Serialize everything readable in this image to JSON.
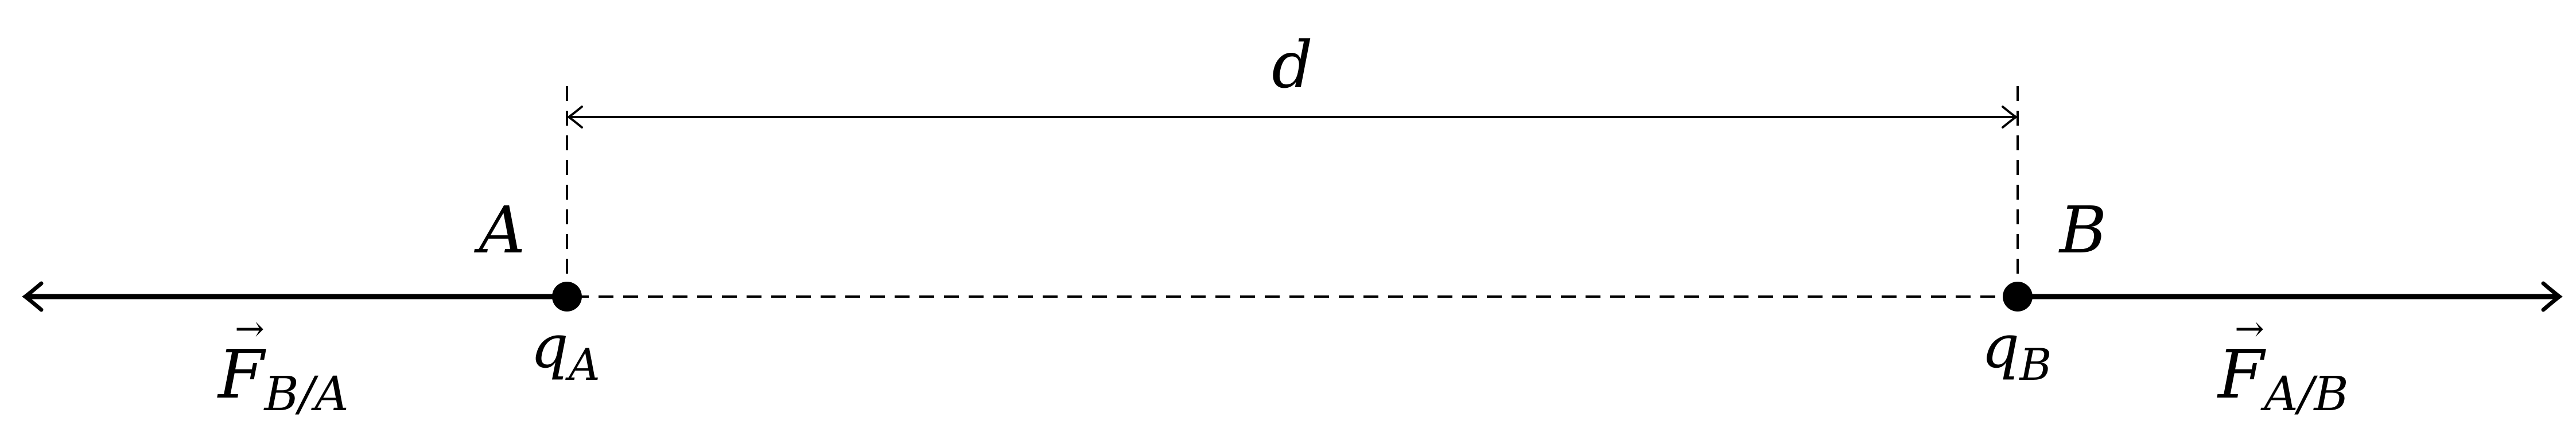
{
  "distance": {
    "label": "d"
  },
  "charge_a": {
    "point_label": "A",
    "charge_symbol": "q",
    "charge_subscript": "A"
  },
  "charge_b": {
    "point_label": "B",
    "charge_symbol": "q",
    "charge_subscript": "B"
  },
  "force_on_a": {
    "arrow": "→",
    "symbol": "F",
    "subscript": "B/A"
  },
  "force_on_b": {
    "arrow": "→",
    "symbol": "F",
    "subscript": "A/B"
  },
  "colors": {
    "ink": "#000000",
    "background": "#ffffff"
  }
}
